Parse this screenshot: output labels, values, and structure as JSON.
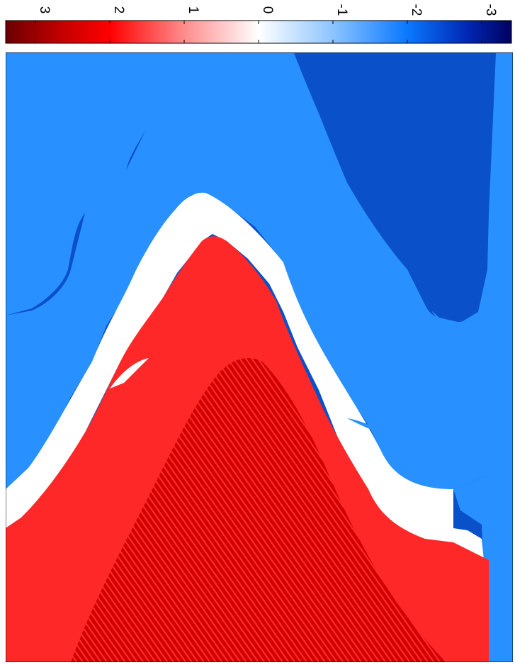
{
  "chart_data": {
    "type": "heatmap",
    "title": "",
    "xlabel": "",
    "ylabel": "",
    "colorbar": {
      "orientation": "horizontal",
      "placement": "top",
      "range": [
        -3.4,
        3.4
      ],
      "ticks": [
        3,
        2,
        1,
        0,
        -1,
        -2,
        -3
      ],
      "tick_labels": [
        "3",
        "2",
        "1",
        "0",
        "-1",
        "-2",
        "-3"
      ],
      "label_rotation": "rotated 90 degrees",
      "colormap": [
        {
          "value": 3.4,
          "color": "#6b0000"
        },
        {
          "value": 2.6,
          "color": "#c80000"
        },
        {
          "value": 2.0,
          "color": "#ff0000"
        },
        {
          "value": 1.0,
          "color": "#ff8c8c"
        },
        {
          "value": 0.0,
          "color": "#ffffff"
        },
        {
          "value": -1.0,
          "color": "#8cc4ff"
        },
        {
          "value": -2.0,
          "color": "#0a78ff"
        },
        {
          "value": -2.8,
          "color": "#0028b4"
        },
        {
          "value": -3.4,
          "color": "#000060"
        }
      ]
    },
    "regions": [
      {
        "name": "background-top-left",
        "level": -2.5,
        "color": "#0a50c8"
      },
      {
        "name": "light-blue-band",
        "level": -1.6,
        "color": "#2890ff"
      },
      {
        "name": "dark-blue-right",
        "level": -2.5,
        "color": "#0a50c8"
      },
      {
        "name": "white-band",
        "level": 0,
        "color": "#ffffff"
      },
      {
        "name": "red-region",
        "level": 2.3,
        "color": "#ff2828"
      },
      {
        "name": "dark-red-core",
        "level": 2.8,
        "color": "#d00000"
      }
    ]
  }
}
